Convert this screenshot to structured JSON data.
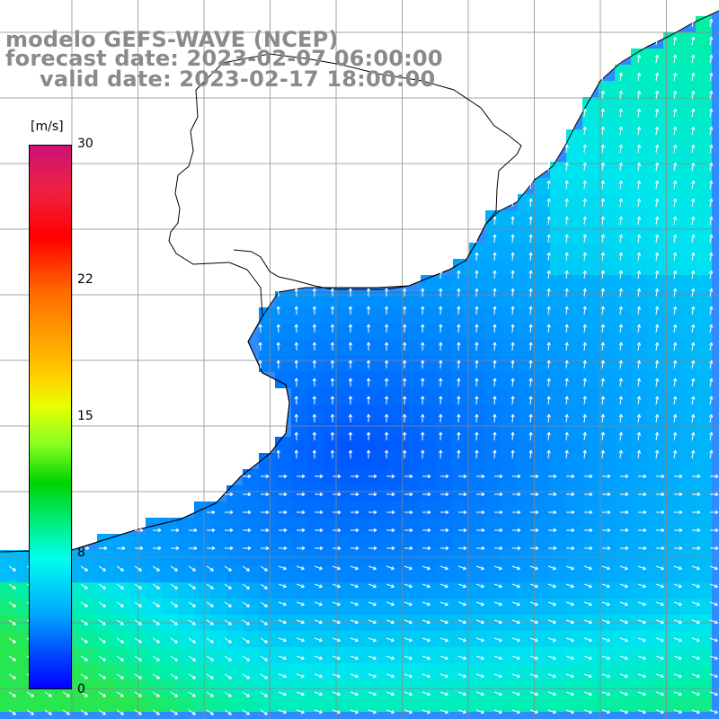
{
  "title": {
    "line1": "modelo GEFS-WAVE (NCEP)",
    "line2": "forecast date: 2023-02-07 06:00:00",
    "line3": "valid date: 2023-02-17 18:00:00"
  },
  "colorbar": {
    "units": "[m/s]",
    "ticks": [
      "30",
      "22",
      "15",
      "8",
      "0"
    ],
    "tick_values": [
      30,
      22,
      15,
      8,
      0
    ],
    "range": [
      0,
      30
    ],
    "colors": [
      "#0000ff",
      "#00aaff",
      "#00ffee",
      "#00d400",
      "#ffcc00",
      "#ff0000",
      "#cc1177"
    ]
  },
  "map": {
    "land_color": "#ffffff",
    "coast_color": "#000000",
    "grid_color": "#888888",
    "arrow_color": "#ffffff"
  }
}
